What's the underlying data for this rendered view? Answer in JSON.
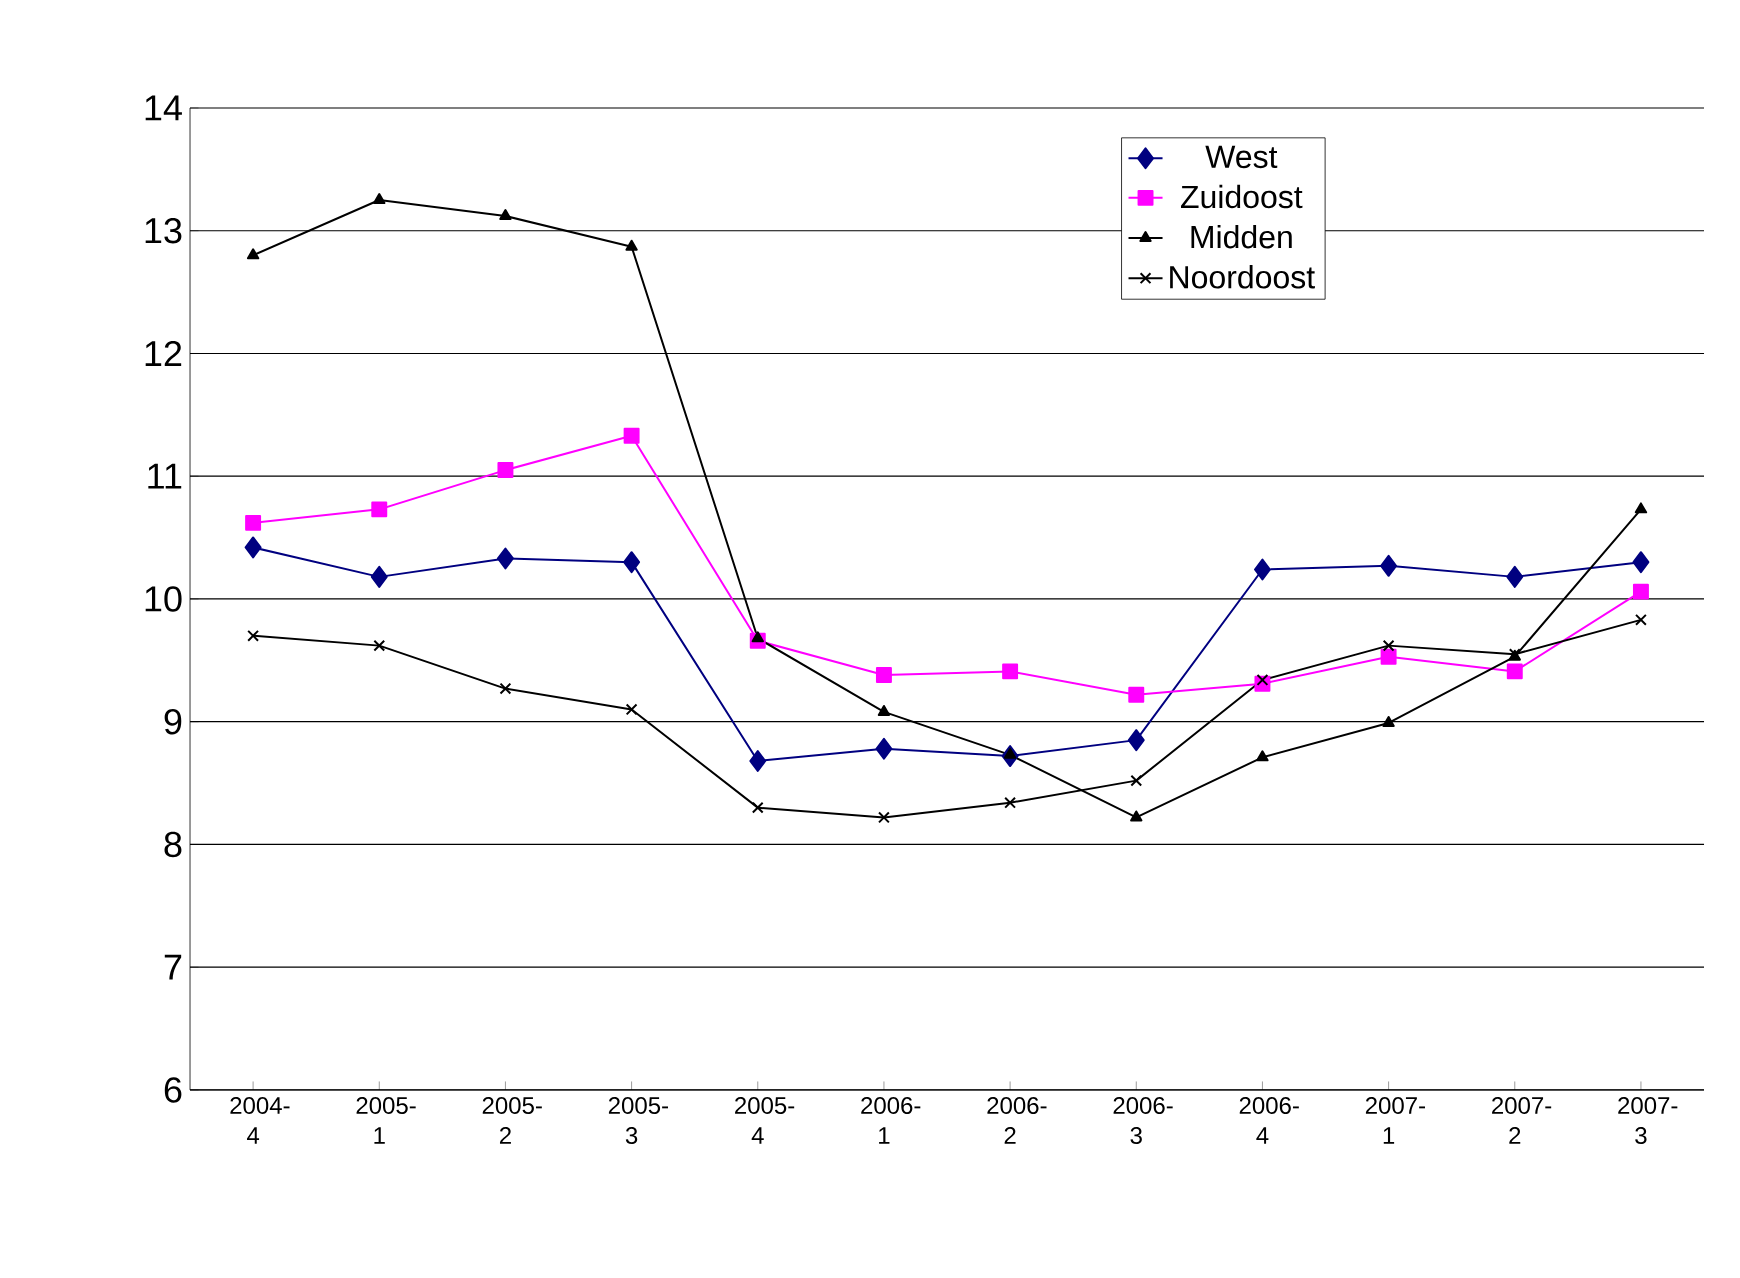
{
  "chart_data": {
    "type": "line",
    "categories": [
      "2004-4",
      "2005-1",
      "2005-2",
      "2005-3",
      "2005-4",
      "2006-1",
      "2006-2",
      "2006-3",
      "2006-4",
      "2007-1",
      "2007-2",
      "2007-3"
    ],
    "series": [
      {
        "name": "West",
        "color": "#000080",
        "marker": "diamond",
        "values": [
          10.42,
          10.18,
          10.33,
          10.3,
          8.68,
          8.78,
          8.72,
          8.85,
          10.24,
          10.27,
          10.18,
          10.3
        ]
      },
      {
        "name": "Zuidoost",
        "color": "#ff00ff",
        "marker": "square",
        "values": [
          10.62,
          10.73,
          11.05,
          11.33,
          9.66,
          9.38,
          9.41,
          9.22,
          9.31,
          9.53,
          9.41,
          10.06
        ]
      },
      {
        "name": "Midden",
        "color": "#000000",
        "marker": "triangle",
        "values": [
          12.8,
          13.25,
          13.12,
          12.87,
          9.68,
          9.08,
          8.73,
          8.22,
          8.71,
          8.99,
          9.53,
          10.73
        ]
      },
      {
        "name": "Noordoost",
        "color": "#000000",
        "marker": "cross",
        "values": [
          9.7,
          9.62,
          9.27,
          9.1,
          8.3,
          8.22,
          8.34,
          8.52,
          9.34,
          9.62,
          9.55,
          9.83
        ]
      }
    ],
    "ylim": [
      6,
      14
    ],
    "yticks": [
      6,
      7,
      8,
      9,
      10,
      11,
      12,
      13,
      14
    ],
    "grid": "y",
    "legend": "top right"
  }
}
